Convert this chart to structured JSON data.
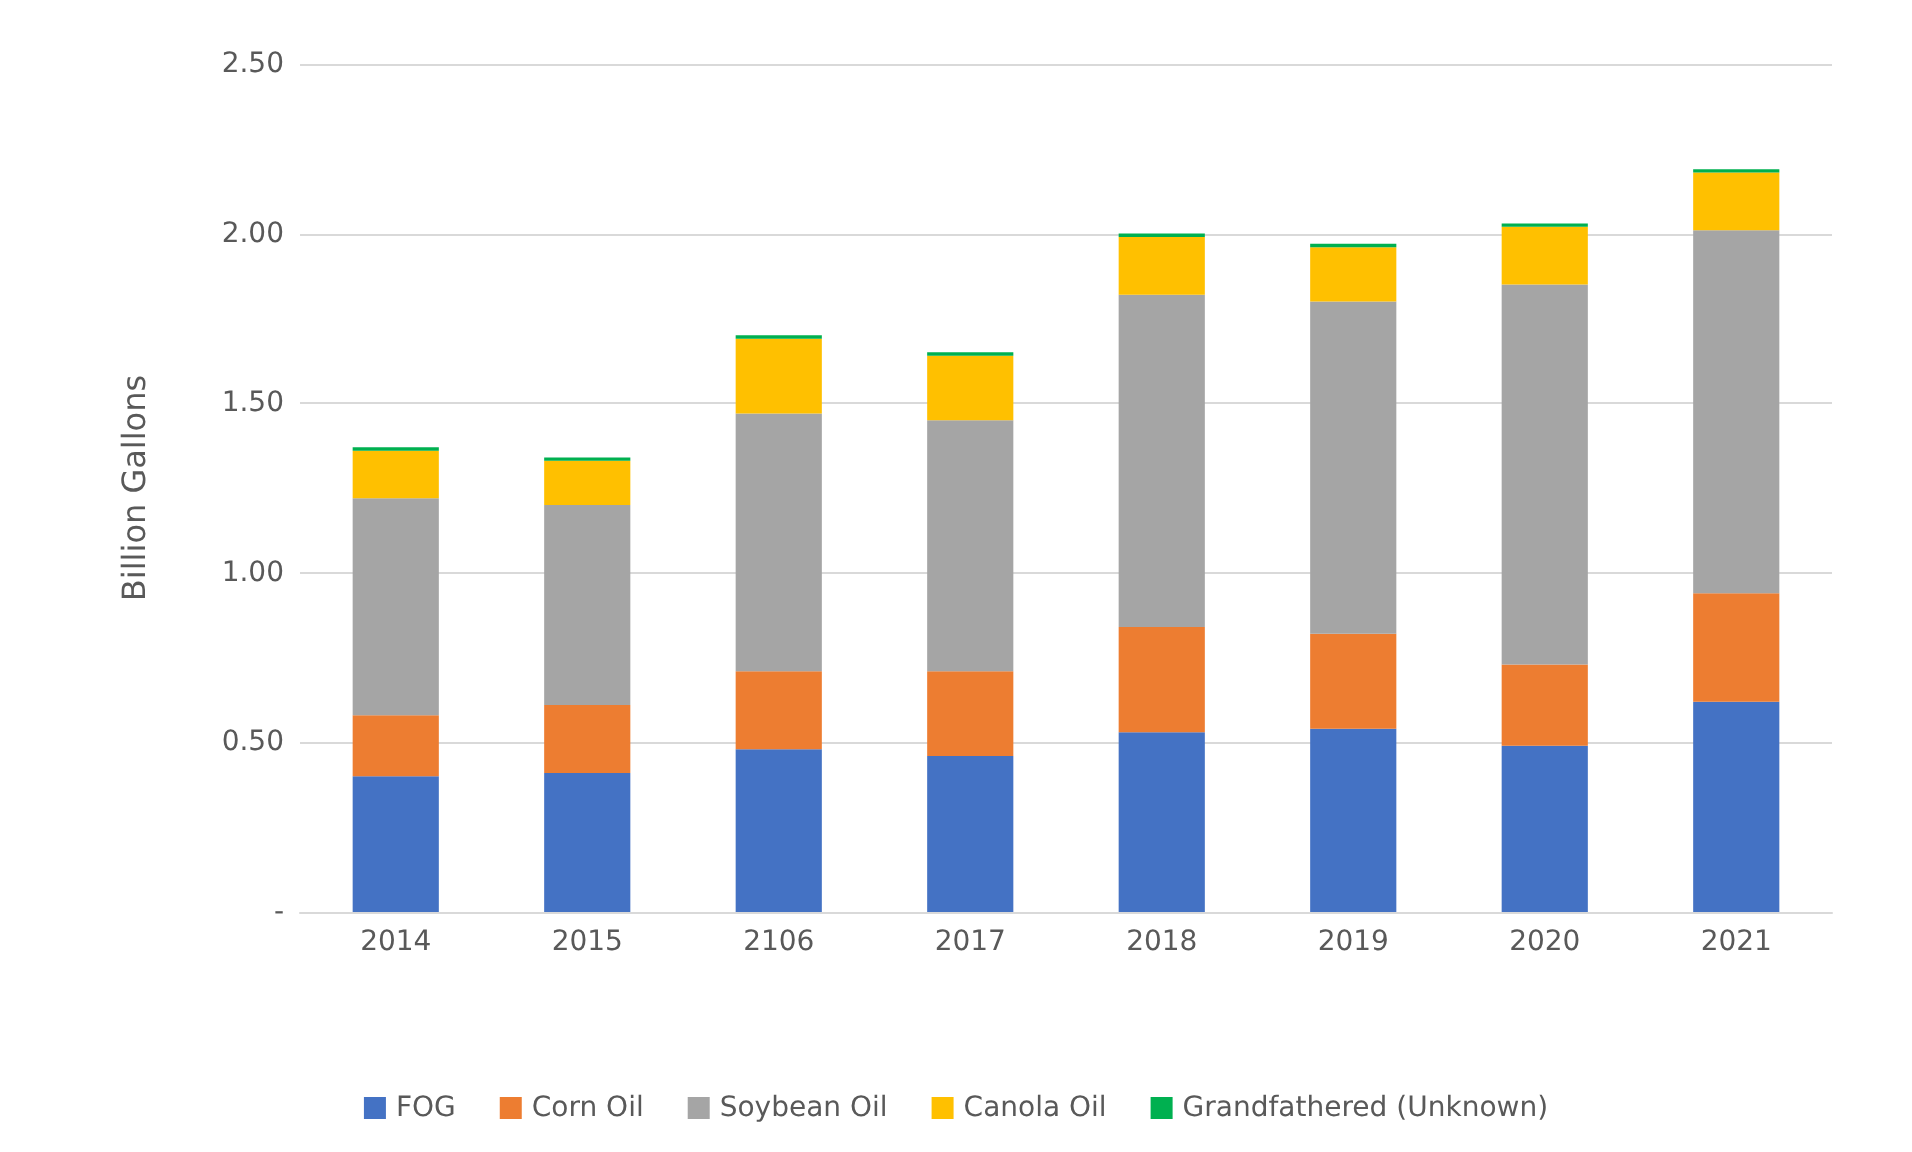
{
  "chart_data": {
    "type": "bar",
    "stacked": true,
    "ylabel": "Billion Gallons",
    "categories": [
      "2014",
      "2015",
      "2106",
      "2017",
      "2018",
      "2019",
      "2020",
      "2021"
    ],
    "series": [
      {
        "name": "FOG",
        "color": "#4472c4",
        "values": [
          0.4,
          0.41,
          0.48,
          0.46,
          0.53,
          0.54,
          0.49,
          0.62
        ]
      },
      {
        "name": "Corn Oil",
        "color": "#ed7d31",
        "values": [
          0.18,
          0.2,
          0.23,
          0.25,
          0.31,
          0.28,
          0.24,
          0.32
        ]
      },
      {
        "name": "Soybean Oil",
        "color": "#a5a5a5",
        "values": [
          0.64,
          0.59,
          0.76,
          0.74,
          0.98,
          0.98,
          1.12,
          1.07
        ]
      },
      {
        "name": "Canola Oil",
        "color": "#ffc000",
        "values": [
          0.14,
          0.13,
          0.22,
          0.19,
          0.17,
          0.16,
          0.17,
          0.17
        ]
      },
      {
        "name": "Grandfathered (Unknown)",
        "color": "#00b050",
        "values": [
          0.01,
          0.01,
          0.01,
          0.01,
          0.01,
          0.01,
          0.01,
          0.01
        ]
      }
    ],
    "ylim": [
      0,
      2.5
    ],
    "yticks": [
      {
        "value": 0,
        "label": "-"
      },
      {
        "value": 0.5,
        "label": "0.50"
      },
      {
        "value": 1,
        "label": "1.00"
      },
      {
        "value": 1.5,
        "label": "1.50"
      },
      {
        "value": 2,
        "label": "2.00"
      },
      {
        "value": 2.5,
        "label": "2.50"
      }
    ],
    "grid": "y",
    "legend": "bottom"
  }
}
